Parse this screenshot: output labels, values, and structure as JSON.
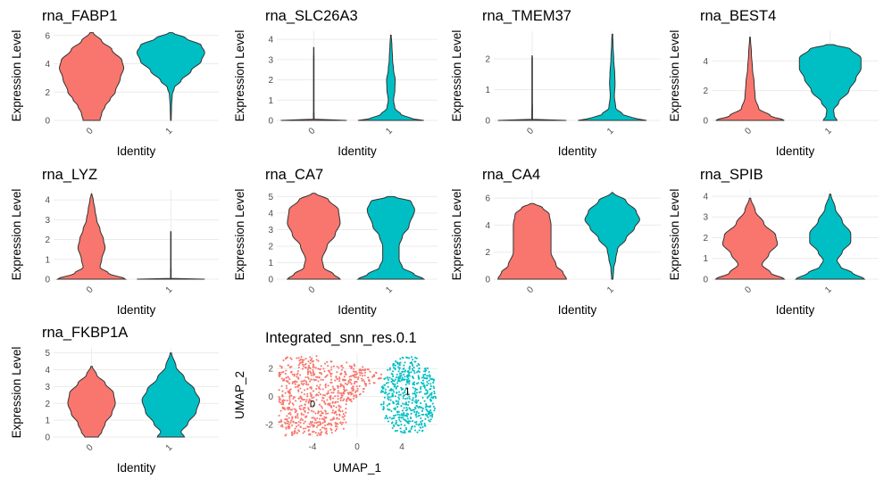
{
  "colors": {
    "group0": "#F8766D",
    "group1": "#00BFC4",
    "grid": "#EBEBEB",
    "text": "#000000",
    "tick": "#4D4D4D"
  },
  "chart_data": [
    {
      "type": "violin",
      "title": "rna_FABP1",
      "xlabel": "Identity",
      "ylabel": "Expression Level",
      "categories": [
        "0",
        "1"
      ],
      "ylim": [
        0,
        6.3
      ],
      "yticks": [
        0,
        2,
        4,
        6
      ],
      "series": [
        {
          "profile": [
            [
              0,
              0.25
            ],
            [
              0.5,
              0.3
            ],
            [
              1,
              0.4
            ],
            [
              1.5,
              0.55
            ],
            [
              2,
              0.7
            ],
            [
              3,
              0.85
            ],
            [
              3.7,
              0.95
            ],
            [
              4.2,
              0.9
            ],
            [
              5,
              0.6
            ],
            [
              5.6,
              0.3
            ],
            [
              6.2,
              0.05
            ]
          ]
        },
        {
          "profile": [
            [
              0,
              0.01
            ],
            [
              1,
              0.02
            ],
            [
              1.8,
              0.04
            ],
            [
              2.3,
              0.1
            ],
            [
              2.8,
              0.3
            ],
            [
              3.5,
              0.6
            ],
            [
              4.2,
              0.9
            ],
            [
              4.8,
              1.0
            ],
            [
              5.3,
              0.9
            ],
            [
              5.8,
              0.45
            ],
            [
              6.2,
              0.05
            ]
          ]
        }
      ]
    },
    {
      "type": "violin",
      "title": "rna_SLC26A3",
      "xlabel": "Identity",
      "ylabel": "Expression Level",
      "categories": [
        "0",
        "1"
      ],
      "ylim": [
        0,
        4.4
      ],
      "yticks": [
        0,
        1,
        2,
        3,
        4
      ],
      "series": [
        {
          "profile": [
            [
              0,
              1.0
            ],
            [
              0.05,
              0.01
            ],
            [
              1,
              0.008
            ],
            [
              2,
              0.008
            ],
            [
              3,
              0.008
            ],
            [
              3.6,
              0.004
            ]
          ]
        },
        {
          "profile": [
            [
              0,
              1.0
            ],
            [
              0.1,
              0.6
            ],
            [
              0.3,
              0.3
            ],
            [
              0.6,
              0.12
            ],
            [
              1,
              0.08
            ],
            [
              1.5,
              0.12
            ],
            [
              2,
              0.13
            ],
            [
              2.5,
              0.08
            ],
            [
              3,
              0.05
            ],
            [
              3.7,
              0.03
            ],
            [
              4.2,
              0.01
            ]
          ]
        }
      ]
    },
    {
      "type": "violin",
      "title": "rna_TMEM37",
      "xlabel": "Identity",
      "ylabel": "Expression Level",
      "categories": [
        "0",
        "1"
      ],
      "ylim": [
        0,
        2.9
      ],
      "yticks": [
        0,
        1,
        2
      ],
      "series": [
        {
          "profile": [
            [
              0,
              1.0
            ],
            [
              0.03,
              0.01
            ],
            [
              1,
              0.008
            ],
            [
              2,
              0.008
            ],
            [
              2.1,
              0.004
            ]
          ]
        },
        {
          "profile": [
            [
              0,
              1.0
            ],
            [
              0.08,
              0.6
            ],
            [
              0.2,
              0.3
            ],
            [
              0.4,
              0.1
            ],
            [
              0.8,
              0.06
            ],
            [
              1.2,
              0.08
            ],
            [
              1.5,
              0.07
            ],
            [
              2,
              0.04
            ],
            [
              2.5,
              0.02
            ],
            [
              2.8,
              0.01
            ]
          ]
        }
      ]
    },
    {
      "type": "violin",
      "title": "rna_BEST4",
      "xlabel": "Identity",
      "ylabel": "Expression Level",
      "categories": [
        "0",
        "1"
      ],
      "ylim": [
        0,
        6.0
      ],
      "yticks": [
        0,
        2,
        4
      ],
      "series": [
        {
          "profile": [
            [
              0,
              1.0
            ],
            [
              0.3,
              0.6
            ],
            [
              0.8,
              0.25
            ],
            [
              1.5,
              0.15
            ],
            [
              2.5,
              0.12
            ],
            [
              3.5,
              0.07
            ],
            [
              4.5,
              0.04
            ],
            [
              5.6,
              0.01
            ]
          ]
        },
        {
          "profile": [
            [
              0,
              0.2
            ],
            [
              0.3,
              0.12
            ],
            [
              0.7,
              0.1
            ],
            [
              1.2,
              0.25
            ],
            [
              2,
              0.55
            ],
            [
              2.8,
              0.75
            ],
            [
              3.5,
              0.9
            ],
            [
              4.2,
              0.9
            ],
            [
              4.8,
              0.6
            ],
            [
              5.1,
              0.1
            ]
          ]
        }
      ]
    },
    {
      "type": "violin",
      "title": "rna_LYZ",
      "xlabel": "Identity",
      "ylabel": "Expression Level",
      "categories": [
        "0",
        "1"
      ],
      "ylim": [
        0,
        4.5
      ],
      "yticks": [
        0,
        1,
        2,
        3,
        4
      ],
      "series": [
        {
          "profile": [
            [
              0,
              1.0
            ],
            [
              0.3,
              0.5
            ],
            [
              0.6,
              0.25
            ],
            [
              1,
              0.3
            ],
            [
              1.6,
              0.4
            ],
            [
              2,
              0.35
            ],
            [
              2.5,
              0.25
            ],
            [
              3,
              0.15
            ],
            [
              3.5,
              0.1
            ],
            [
              4,
              0.05
            ],
            [
              4.3,
              0.01
            ]
          ]
        },
        {
          "profile": [
            [
              0,
              1.0
            ],
            [
              0.03,
              0.01
            ],
            [
              1,
              0.006
            ],
            [
              2,
              0.006
            ],
            [
              2.4,
              0.003
            ]
          ]
        }
      ]
    },
    {
      "type": "violin",
      "title": "rna_CA7",
      "xlabel": "Identity",
      "ylabel": "Expression Level",
      "categories": [
        "0",
        "1"
      ],
      "ylim": [
        0,
        5.4
      ],
      "yticks": [
        0,
        1,
        2,
        3,
        4,
        5
      ],
      "series": [
        {
          "profile": [
            [
              0,
              0.8
            ],
            [
              0.3,
              0.6
            ],
            [
              0.7,
              0.3
            ],
            [
              1.2,
              0.25
            ],
            [
              2,
              0.4
            ],
            [
              2.7,
              0.65
            ],
            [
              3.4,
              0.8
            ],
            [
              4.2,
              0.75
            ],
            [
              4.8,
              0.45
            ],
            [
              5.2,
              0.05
            ]
          ]
        },
        {
          "profile": [
            [
              0,
              1.0
            ],
            [
              0.3,
              0.7
            ],
            [
              0.7,
              0.35
            ],
            [
              1.2,
              0.25
            ],
            [
              2,
              0.25
            ],
            [
              2.6,
              0.35
            ],
            [
              3.2,
              0.55
            ],
            [
              4.2,
              0.72
            ],
            [
              4.7,
              0.62
            ],
            [
              5.0,
              0.1
            ]
          ]
        }
      ]
    },
    {
      "type": "violin",
      "title": "rna_CA4",
      "xlabel": "Identity",
      "ylabel": "Expression Level",
      "categories": [
        "0",
        "1"
      ],
      "ylim": [
        0,
        6.6
      ],
      "yticks": [
        0,
        2,
        4,
        6
      ],
      "series": [
        {
          "profile": [
            [
              0,
              1.0
            ],
            [
              0.5,
              0.9
            ],
            [
              1,
              0.7
            ],
            [
              2,
              0.55
            ],
            [
              3,
              0.55
            ],
            [
              4,
              0.55
            ],
            [
              4.8,
              0.5
            ],
            [
              5.3,
              0.3
            ],
            [
              5.6,
              0.05
            ]
          ]
        },
        {
          "profile": [
            [
              0,
              0.02
            ],
            [
              0.8,
              0.04
            ],
            [
              1.5,
              0.1
            ],
            [
              2.2,
              0.15
            ],
            [
              3,
              0.4
            ],
            [
              3.8,
              0.65
            ],
            [
              4.4,
              0.8
            ],
            [
              5,
              0.7
            ],
            [
              5.8,
              0.4
            ],
            [
              6.4,
              0.02
            ]
          ]
        }
      ]
    },
    {
      "type": "violin",
      "title": "rna_SPIB",
      "xlabel": "Identity",
      "ylabel": "Expression Level",
      "categories": [
        "0",
        "1"
      ],
      "ylim": [
        0,
        4.3
      ],
      "yticks": [
        0,
        1,
        2,
        3,
        4
      ],
      "series": [
        {
          "profile": [
            [
              0,
              1.0
            ],
            [
              0.3,
              0.6
            ],
            [
              0.7,
              0.35
            ],
            [
              1.2,
              0.55
            ],
            [
              1.7,
              0.8
            ],
            [
              2.1,
              0.75
            ],
            [
              2.7,
              0.4
            ],
            [
              3.3,
              0.15
            ],
            [
              3.9,
              0.02
            ]
          ]
        },
        {
          "profile": [
            [
              0,
              1.0
            ],
            [
              0.3,
              0.65
            ],
            [
              0.6,
              0.3
            ],
            [
              0.9,
              0.2
            ],
            [
              1.3,
              0.35
            ],
            [
              1.8,
              0.6
            ],
            [
              2.2,
              0.6
            ],
            [
              2.8,
              0.35
            ],
            [
              3.4,
              0.15
            ],
            [
              4.1,
              0.02
            ]
          ]
        }
      ]
    },
    {
      "type": "violin",
      "title": "rna_FKBP1A",
      "xlabel": "Identity",
      "ylabel": "Expression Level",
      "categories": [
        "0",
        "1"
      ],
      "ylim": [
        0,
        5.3
      ],
      "yticks": [
        0,
        1,
        2,
        3,
        4,
        5
      ],
      "series": [
        {
          "profile": [
            [
              0,
              0.2
            ],
            [
              0.3,
              0.3
            ],
            [
              0.8,
              0.4
            ],
            [
              1.4,
              0.6
            ],
            [
              2,
              0.7
            ],
            [
              2.6,
              0.65
            ],
            [
              3.2,
              0.4
            ],
            [
              3.7,
              0.15
            ],
            [
              4.2,
              0.02
            ]
          ]
        },
        {
          "profile": [
            [
              0,
              0.4
            ],
            [
              0.3,
              0.3
            ],
            [
              0.8,
              0.5
            ],
            [
              1.5,
              0.75
            ],
            [
              2.2,
              0.85
            ],
            [
              2.8,
              0.7
            ],
            [
              3.5,
              0.4
            ],
            [
              4.2,
              0.15
            ],
            [
              5.0,
              0.02
            ]
          ]
        }
      ]
    },
    {
      "type": "scatter",
      "title": "Integrated_snn_res.0.1",
      "xlabel": "UMAP_1",
      "ylabel": "UMAP_2",
      "xlim": [
        -7.2,
        7.2
      ],
      "ylim": [
        -2.9,
        3.1
      ],
      "xticks": [
        -4,
        0,
        4
      ],
      "yticks": [
        -2,
        0,
        2
      ],
      "clusters": [
        {
          "label": "0",
          "label_pos": [
            -4,
            -0.5
          ],
          "point_count": 760,
          "x_range": [
            -7,
            2.2
          ],
          "y_range": [
            -2.8,
            3
          ],
          "waist_x": 0.5
        },
        {
          "label": "1",
          "label_pos": [
            4.5,
            0.4
          ],
          "point_count": 520,
          "center": [
            4.6,
            0.0
          ],
          "radius": [
            2.5,
            2.5
          ]
        }
      ]
    }
  ]
}
